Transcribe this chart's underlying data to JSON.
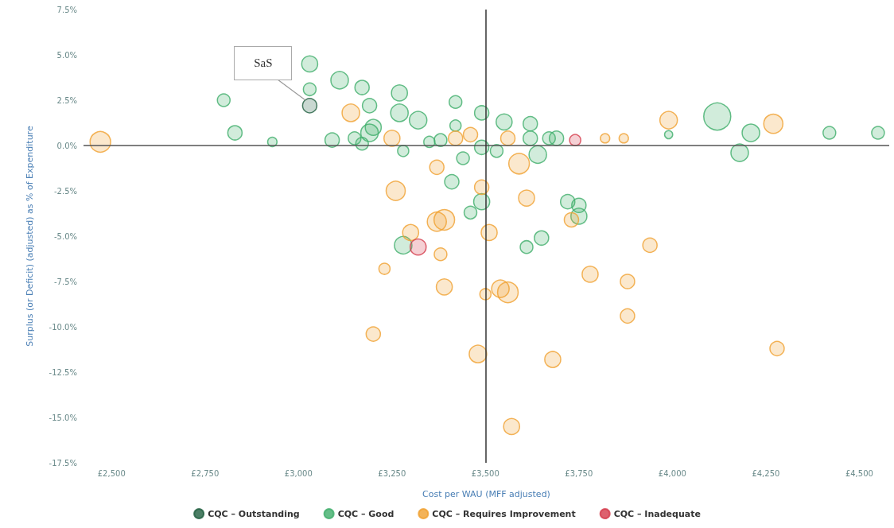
{
  "chart_data": {
    "type": "bubble",
    "xlabel": "Cost per WAU (MFF adjusted)",
    "ylabel": "Surplus (or Deficit) (adjusted) as % of Expenditure",
    "xlim": [
      2425,
      4580
    ],
    "ylim": [
      -17.5,
      7.5
    ],
    "xticks": [
      {
        "value": 2500,
        "label": "£2,500"
      },
      {
        "value": 2750,
        "label": "£2,750"
      },
      {
        "value": 3000,
        "label": "£3,000"
      },
      {
        "value": 3250,
        "label": "£3,250"
      },
      {
        "value": 3500,
        "label": "£3,500"
      },
      {
        "value": 3750,
        "label": "£3,750"
      },
      {
        "value": 4000,
        "label": "£4,000"
      },
      {
        "value": 4250,
        "label": "£4,250"
      },
      {
        "value": 4500,
        "label": "£4,500"
      }
    ],
    "yticks": [
      {
        "value": 7.5,
        "label": "7.5%"
      },
      {
        "value": 5,
        "label": "5.0%"
      },
      {
        "value": 2.5,
        "label": "2.5%"
      },
      {
        "value": 0,
        "label": "0.0%"
      },
      {
        "value": -2.5,
        "label": "-2.5%"
      },
      {
        "value": -5,
        "label": "-5.0%"
      },
      {
        "value": -7.5,
        "label": "-7.5%"
      },
      {
        "value": -10,
        "label": "-10.0%"
      },
      {
        "value": -12.5,
        "label": "-12.5%"
      },
      {
        "value": -15,
        "label": "-15.0%"
      },
      {
        "value": -17.5,
        "label": "-17.5%"
      }
    ],
    "grid": false,
    "legend": "bottom",
    "marker": "circle",
    "ref_lines": [
      {
        "axis": "y",
        "value": 0,
        "color": "#555555"
      },
      {
        "axis": "x",
        "value": 3500,
        "color": "#333333"
      }
    ],
    "annotations": [
      {
        "text": "SaS",
        "x": 3030,
        "y": 2.2
      }
    ],
    "series": [
      {
        "name": "CQC – Outstanding",
        "color": "#1f5e3f",
        "x": [
          3030
        ],
        "values": [
          2.2
        ],
        "sizes": [
          0.28
        ]
      },
      {
        "name": "CQC – Good",
        "color": "#3fae6a",
        "x": [
          2800,
          2830,
          2930,
          3030,
          3030,
          3110,
          3170,
          3190,
          3270,
          3270,
          3320,
          3420,
          3090,
          3150,
          3190,
          3200,
          3170,
          3280,
          3350,
          3380,
          3410,
          3440,
          3420,
          3460,
          3490,
          3490,
          3490,
          3530,
          3550,
          3620,
          3640,
          3620,
          3670,
          3690,
          3720,
          3750,
          3750,
          3610,
          3650,
          3280,
          4120,
          4210,
          4180,
          4420,
          4550,
          3990
        ],
        "values": [
          2.5,
          0.7,
          0.2,
          4.5,
          3.1,
          3.6,
          3.2,
          2.2,
          2.9,
          1.8,
          1.4,
          2.4,
          0.3,
          0.4,
          0.7,
          1.0,
          0.1,
          -0.3,
          0.2,
          0.3,
          -2.0,
          -0.7,
          1.1,
          -3.7,
          -3.1,
          1.8,
          -0.1,
          -0.3,
          1.3,
          1.2,
          -0.5,
          0.4,
          0.4,
          0.4,
          -3.1,
          -3.3,
          -3.9,
          -5.6,
          -5.1,
          -5.5,
          1.6,
          0.7,
          -0.4,
          0.7,
          0.7,
          0.6
        ],
        "sizes": [
          0.22,
          0.28,
          0.12,
          0.35,
          0.22,
          0.42,
          0.28,
          0.28,
          0.35,
          0.42,
          0.42,
          0.22,
          0.28,
          0.22,
          0.42,
          0.35,
          0.22,
          0.17,
          0.17,
          0.22,
          0.28,
          0.22,
          0.17,
          0.22,
          0.35,
          0.28,
          0.28,
          0.22,
          0.35,
          0.28,
          0.42,
          0.28,
          0.22,
          0.28,
          0.28,
          0.28,
          0.35,
          0.22,
          0.28,
          0.42,
          1,
          0.42,
          0.42,
          0.22,
          0.22,
          0.09
        ]
      },
      {
        "name": "CQC – Requires Improvement",
        "color": "#f0a030",
        "x": [
          2470,
          3140,
          3250,
          3260,
          3370,
          3370,
          3390,
          3300,
          3230,
          3380,
          3390,
          3490,
          3510,
          3500,
          3540,
          3560,
          3200,
          3480,
          3570,
          3680,
          3610,
          3590,
          3560,
          3730,
          3780,
          3880,
          3880,
          3940,
          3990,
          4270,
          4280,
          3820,
          3870,
          3460,
          3420
        ],
        "values": [
          0.2,
          1.8,
          0.4,
          -2.5,
          -1.2,
          -4.2,
          -4.1,
          -4.8,
          -6.8,
          -6.0,
          -7.8,
          -2.3,
          -4.8,
          -8.2,
          -7.9,
          -8.1,
          -10.4,
          -11.5,
          -15.5,
          -11.8,
          -2.9,
          -1.0,
          0.4,
          -4.1,
          -7.1,
          -7.5,
          -9.4,
          -5.5,
          1.4,
          1.2,
          -11.2,
          0.4,
          0.4,
          0.6,
          0.4
        ],
        "sizes": [
          0.58,
          0.42,
          0.35,
          0.5,
          0.28,
          0.5,
          0.58,
          0.35,
          0.17,
          0.22,
          0.35,
          0.28,
          0.35,
          0.17,
          0.42,
          0.58,
          0.28,
          0.42,
          0.35,
          0.35,
          0.35,
          0.58,
          0.28,
          0.28,
          0.35,
          0.28,
          0.28,
          0.28,
          0.42,
          0.5,
          0.28,
          0.12,
          0.12,
          0.28,
          0.28
        ]
      },
      {
        "name": "CQC – Inadequate",
        "color": "#d43a4a",
        "x": [
          3320,
          3740
        ],
        "values": [
          -5.6,
          0.3
        ],
        "sizes": [
          0.35,
          0.17
        ]
      }
    ]
  }
}
